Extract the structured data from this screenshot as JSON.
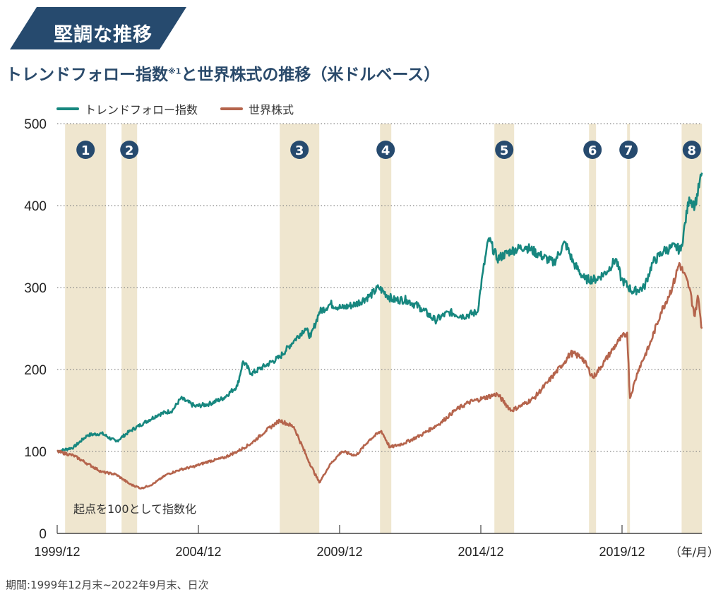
{
  "banner": {
    "label": "堅調な推移"
  },
  "title": {
    "main": "トレンドフォロー指数",
    "note": "※1",
    "rest": "と世界株式の推移（米ドルベース）"
  },
  "footer": "期間:1999年12月末~2022年9月末、日次",
  "colors": {
    "trend": "#17877f",
    "world": "#b5644c",
    "band": "#efe6cf",
    "navy": "#264a6e",
    "grid": "#888888"
  },
  "chart_data": {
    "type": "line",
    "title": "トレンドフォロー指数※1と世界株式の推移（米ドルベース）",
    "xlabel": "（年/月）",
    "ylabel": "",
    "ylim": [
      0,
      500
    ],
    "xlim": [
      1999.92,
      2022.75
    ],
    "yticks": [
      0,
      100,
      200,
      300,
      400,
      500
    ],
    "xticks": [
      {
        "x": 1999.92,
        "label": "1999/12"
      },
      {
        "x": 2004.92,
        "label": "2004/12"
      },
      {
        "x": 2009.92,
        "label": "2009/12"
      },
      {
        "x": 2014.92,
        "label": "2014/12"
      },
      {
        "x": 2019.92,
        "label": "2019/12"
      }
    ],
    "grid": "horizontal dotted",
    "legend_position": "top-left",
    "annotation": "起点を100として指数化",
    "bands": [
      {
        "label": "1",
        "start": 2000.2,
        "end": 2001.65
      },
      {
        "label": "2",
        "start": 2002.2,
        "end": 2002.75
      },
      {
        "label": "3",
        "start": 2007.8,
        "end": 2009.2
      },
      {
        "label": "4",
        "start": 2011.35,
        "end": 2011.75
      },
      {
        "label": "5",
        "start": 2015.4,
        "end": 2016.1
      },
      {
        "label": "6",
        "start": 2018.75,
        "end": 2019.0
      },
      {
        "label": "7",
        "start": 2020.1,
        "end": 2020.2
      },
      {
        "label": "8",
        "start": 2022.03,
        "end": 2022.75
      }
    ],
    "series": [
      {
        "name": "トレンドフォロー指数",
        "color_key": "trend",
        "points": [
          [
            1999.92,
            100
          ],
          [
            2000.5,
            105
          ],
          [
            2001.0,
            120
          ],
          [
            2001.5,
            122
          ],
          [
            2002.0,
            112
          ],
          [
            2002.5,
            125
          ],
          [
            2003.0,
            135
          ],
          [
            2003.5,
            145
          ],
          [
            2004.0,
            150
          ],
          [
            2004.3,
            165
          ],
          [
            2004.8,
            155
          ],
          [
            2005.3,
            158
          ],
          [
            2005.8,
            165
          ],
          [
            2006.3,
            180
          ],
          [
            2006.5,
            210
          ],
          [
            2006.8,
            195
          ],
          [
            2007.3,
            205
          ],
          [
            2007.8,
            215
          ],
          [
            2008.3,
            235
          ],
          [
            2008.7,
            250
          ],
          [
            2008.9,
            240
          ],
          [
            2009.2,
            270
          ],
          [
            2009.6,
            280
          ],
          [
            2010.0,
            275
          ],
          [
            2010.5,
            280
          ],
          [
            2011.0,
            290
          ],
          [
            2011.3,
            300
          ],
          [
            2011.8,
            285
          ],
          [
            2012.3,
            285
          ],
          [
            2012.8,
            275
          ],
          [
            2013.3,
            260
          ],
          [
            2013.8,
            270
          ],
          [
            2014.3,
            265
          ],
          [
            2014.8,
            270
          ],
          [
            2015.0,
            320
          ],
          [
            2015.2,
            360
          ],
          [
            2015.5,
            335
          ],
          [
            2016.0,
            345
          ],
          [
            2016.5,
            350
          ],
          [
            2017.0,
            340
          ],
          [
            2017.5,
            330
          ],
          [
            2017.9,
            355
          ],
          [
            2018.2,
            330
          ],
          [
            2018.6,
            310
          ],
          [
            2019.0,
            310
          ],
          [
            2019.4,
            320
          ],
          [
            2019.7,
            335
          ],
          [
            2019.9,
            310
          ],
          [
            2020.3,
            295
          ],
          [
            2020.7,
            300
          ],
          [
            2021.0,
            330
          ],
          [
            2021.4,
            345
          ],
          [
            2021.8,
            350
          ],
          [
            2022.0,
            345
          ],
          [
            2022.3,
            410
          ],
          [
            2022.5,
            400
          ],
          [
            2022.75,
            440
          ]
        ]
      },
      {
        "name": "世界株式",
        "color_key": "world",
        "points": [
          [
            1999.92,
            100
          ],
          [
            2000.5,
            95
          ],
          [
            2001.0,
            85
          ],
          [
            2001.5,
            75
          ],
          [
            2002.0,
            72
          ],
          [
            2002.5,
            60
          ],
          [
            2002.9,
            55
          ],
          [
            2003.3,
            60
          ],
          [
            2003.8,
            72
          ],
          [
            2004.3,
            78
          ],
          [
            2004.8,
            82
          ],
          [
            2005.3,
            88
          ],
          [
            2005.8,
            92
          ],
          [
            2006.3,
            100
          ],
          [
            2006.8,
            110
          ],
          [
            2007.3,
            125
          ],
          [
            2007.8,
            138
          ],
          [
            2008.3,
            130
          ],
          [
            2008.8,
            90
          ],
          [
            2009.2,
            62
          ],
          [
            2009.6,
            85
          ],
          [
            2010.0,
            100
          ],
          [
            2010.5,
            95
          ],
          [
            2011.0,
            115
          ],
          [
            2011.4,
            125
          ],
          [
            2011.7,
            105
          ],
          [
            2012.2,
            110
          ],
          [
            2012.8,
            120
          ],
          [
            2013.5,
            135
          ],
          [
            2014.0,
            150
          ],
          [
            2014.5,
            160
          ],
          [
            2015.0,
            165
          ],
          [
            2015.5,
            170
          ],
          [
            2016.0,
            150
          ],
          [
            2016.3,
            155
          ],
          [
            2016.8,
            165
          ],
          [
            2017.3,
            185
          ],
          [
            2017.9,
            210
          ],
          [
            2018.1,
            220
          ],
          [
            2018.5,
            215
          ],
          [
            2018.9,
            190
          ],
          [
            2019.3,
            210
          ],
          [
            2019.8,
            235
          ],
          [
            2020.1,
            245
          ],
          [
            2020.2,
            165
          ],
          [
            2020.5,
            200
          ],
          [
            2020.9,
            230
          ],
          [
            2021.3,
            270
          ],
          [
            2021.7,
            300
          ],
          [
            2021.95,
            330
          ],
          [
            2022.3,
            300
          ],
          [
            2022.5,
            265
          ],
          [
            2022.6,
            290
          ],
          [
            2022.75,
            250
          ]
        ]
      }
    ]
  }
}
